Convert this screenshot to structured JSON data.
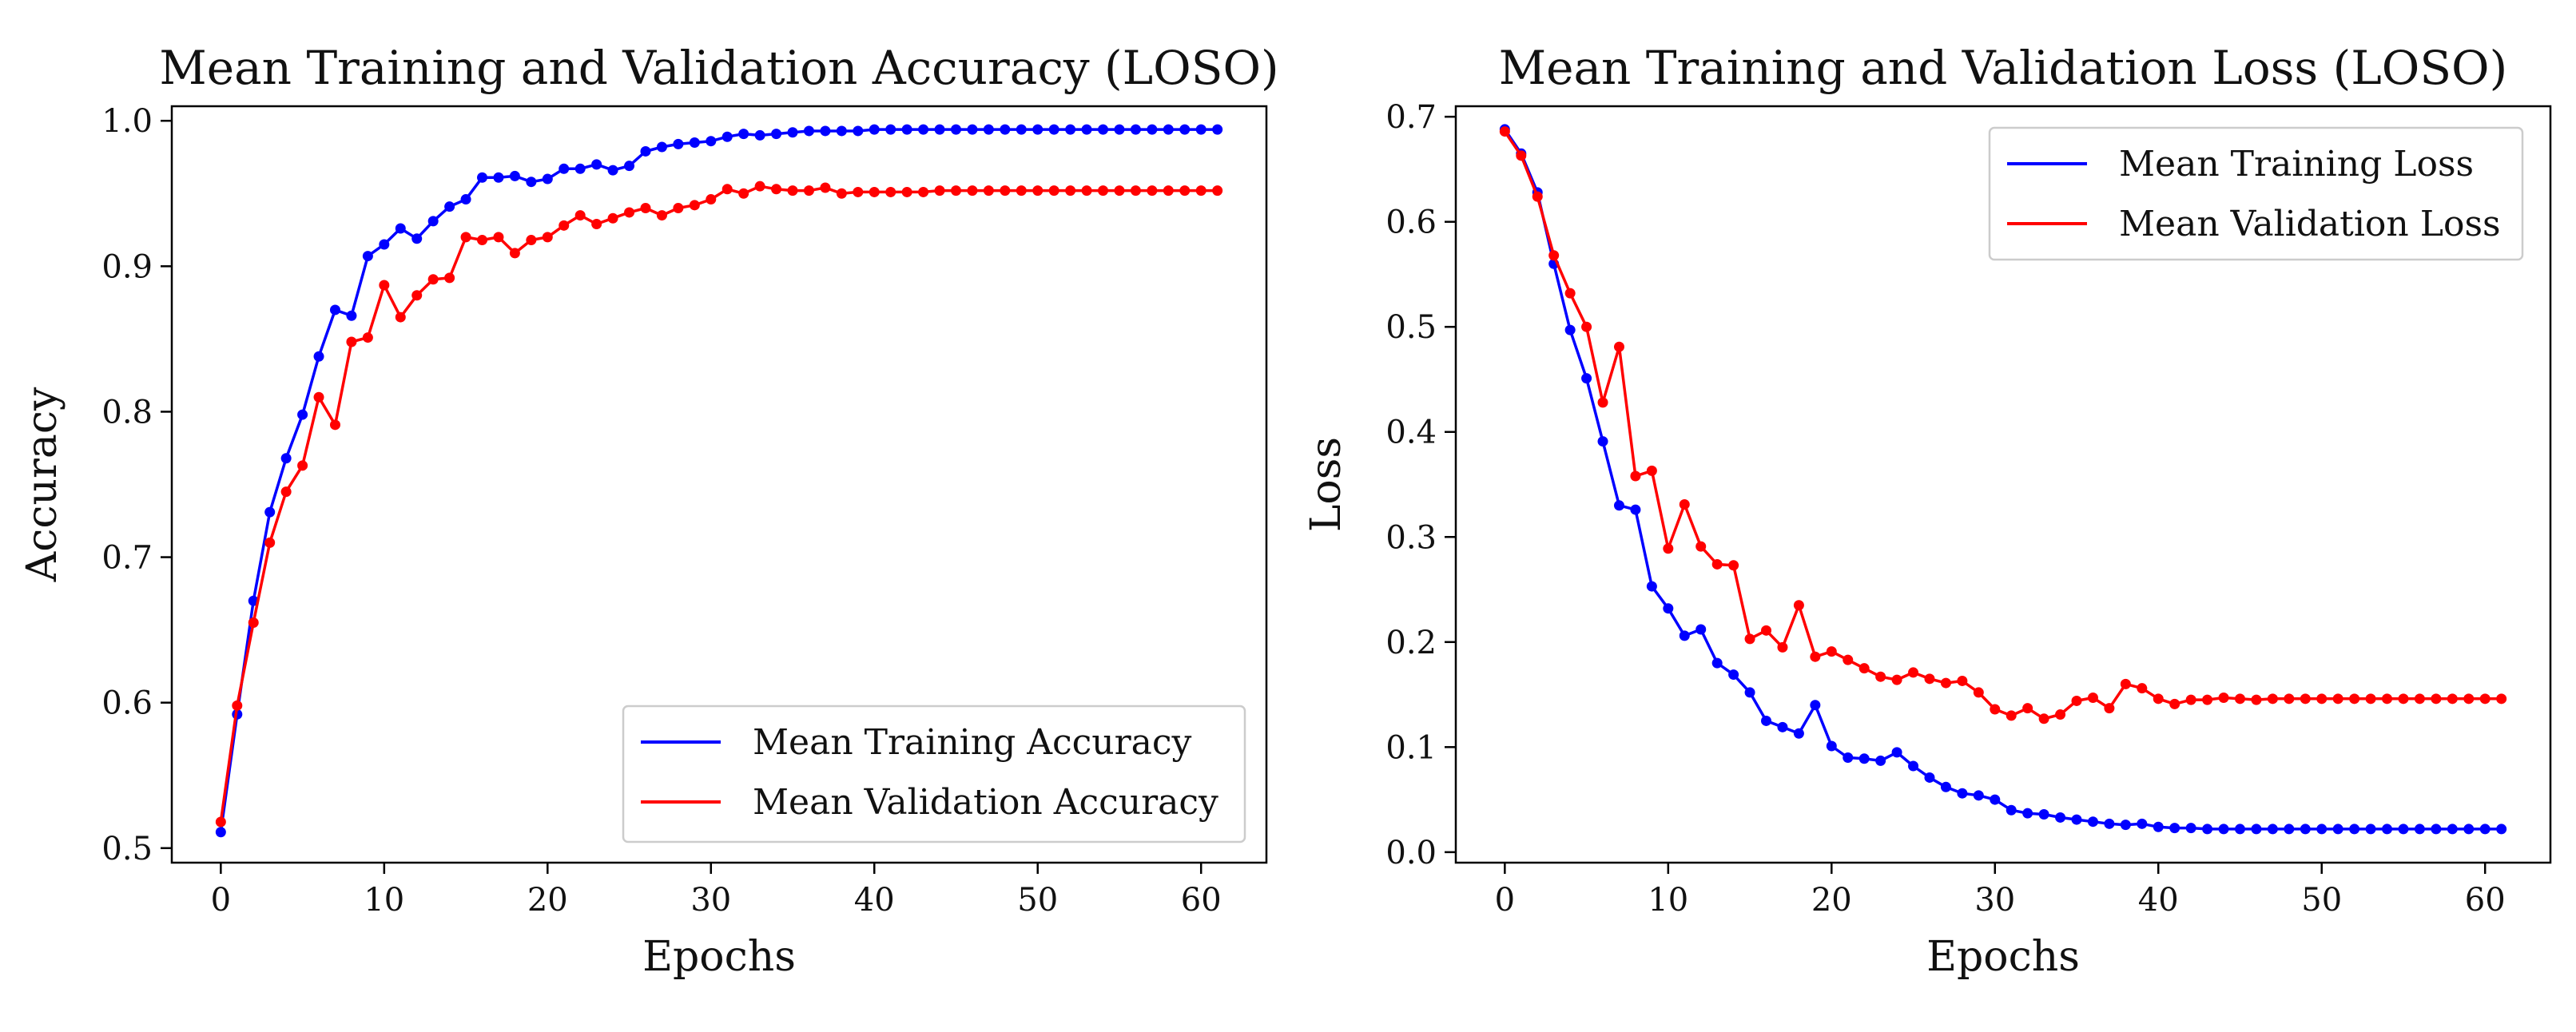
{
  "chart_data": [
    {
      "type": "line",
      "title": "Mean Training and Validation Accuracy (LOSO)",
      "xlabel": "Epochs",
      "ylabel": "Accuracy",
      "xlim": [
        -3,
        64
      ],
      "ylim": [
        0.49,
        1.01
      ],
      "xticks": [
        0,
        10,
        20,
        30,
        40,
        50,
        60
      ],
      "xtick_labels": [
        "0",
        "10",
        "20",
        "30",
        "40",
        "50",
        "60"
      ],
      "yticks": [
        0.5,
        0.6,
        0.7,
        0.8,
        0.9,
        1.0
      ],
      "ytick_labels": [
        "0.5",
        "0.6",
        "0.7",
        "0.8",
        "0.9",
        "1.0"
      ],
      "legend_position": "lower-right",
      "series": [
        {
          "name": "Mean Training Accuracy",
          "color": "#0000ff",
          "values": [
            0.511,
            0.592,
            0.67,
            0.731,
            0.768,
            0.798,
            0.838,
            0.87,
            0.866,
            0.907,
            0.915,
            0.926,
            0.919,
            0.931,
            0.941,
            0.946,
            0.961,
            0.961,
            0.962,
            0.958,
            0.96,
            0.967,
            0.967,
            0.97,
            0.966,
            0.969,
            0.979,
            0.982,
            0.984,
            0.985,
            0.986,
            0.989,
            0.991,
            0.99,
            0.991,
            0.992,
            0.993,
            0.993,
            0.993,
            0.993,
            0.994,
            0.994,
            0.994,
            0.994,
            0.994,
            0.994,
            0.994,
            0.994,
            0.994,
            0.994,
            0.994,
            0.994,
            0.994,
            0.994,
            0.994,
            0.994,
            0.994,
            0.994,
            0.994,
            0.994,
            0.994,
            0.994
          ]
        },
        {
          "name": "Mean Validation Accuracy",
          "color": "#ff0000",
          "values": [
            0.518,
            0.598,
            0.655,
            0.71,
            0.745,
            0.763,
            0.81,
            0.791,
            0.848,
            0.851,
            0.887,
            0.865,
            0.88,
            0.891,
            0.892,
            0.92,
            0.918,
            0.92,
            0.909,
            0.918,
            0.92,
            0.928,
            0.935,
            0.929,
            0.933,
            0.937,
            0.94,
            0.935,
            0.94,
            0.942,
            0.946,
            0.953,
            0.95,
            0.955,
            0.953,
            0.952,
            0.952,
            0.954,
            0.95,
            0.951,
            0.951,
            0.951,
            0.951,
            0.951,
            0.952,
            0.952,
            0.952,
            0.952,
            0.952,
            0.952,
            0.952,
            0.952,
            0.952,
            0.952,
            0.952,
            0.952,
            0.952,
            0.952,
            0.952,
            0.952,
            0.952,
            0.952
          ]
        }
      ]
    },
    {
      "type": "line",
      "title": "Mean Training and Validation Loss (LOSO)",
      "xlabel": "Epochs",
      "ylabel": "Loss",
      "xlim": [
        -3,
        64
      ],
      "ylim": [
        -0.01,
        0.71
      ],
      "xticks": [
        0,
        10,
        20,
        30,
        40,
        50,
        60
      ],
      "xtick_labels": [
        "0",
        "10",
        "20",
        "30",
        "40",
        "50",
        "60"
      ],
      "yticks": [
        0.0,
        0.1,
        0.2,
        0.3,
        0.4,
        0.5,
        0.6,
        0.7
      ],
      "ytick_labels": [
        "0.0",
        "0.1",
        "0.2",
        "0.3",
        "0.4",
        "0.5",
        "0.6",
        "0.7"
      ],
      "legend_position": "upper-right",
      "series": [
        {
          "name": "Mean Training Loss",
          "color": "#0000ff",
          "values": [
            0.688,
            0.665,
            0.628,
            0.56,
            0.497,
            0.451,
            0.391,
            0.33,
            0.326,
            0.253,
            0.232,
            0.206,
            0.212,
            0.18,
            0.169,
            0.152,
            0.125,
            0.119,
            0.113,
            0.14,
            0.101,
            0.09,
            0.089,
            0.087,
            0.095,
            0.082,
            0.071,
            0.062,
            0.056,
            0.054,
            0.05,
            0.04,
            0.037,
            0.036,
            0.033,
            0.031,
            0.029,
            0.027,
            0.026,
            0.027,
            0.024,
            0.023,
            0.023,
            0.022,
            0.022,
            0.022,
            0.022,
            0.022,
            0.022,
            0.022,
            0.022,
            0.022,
            0.022,
            0.022,
            0.022,
            0.022,
            0.022,
            0.022,
            0.022,
            0.022,
            0.022,
            0.022
          ]
        },
        {
          "name": "Mean Validation Loss",
          "color": "#ff0000",
          "values": [
            0.686,
            0.663,
            0.624,
            0.568,
            0.532,
            0.5,
            0.428,
            0.481,
            0.358,
            0.363,
            0.289,
            0.331,
            0.291,
            0.274,
            0.273,
            0.203,
            0.211,
            0.195,
            0.235,
            0.186,
            0.191,
            0.183,
            0.175,
            0.167,
            0.164,
            0.171,
            0.165,
            0.161,
            0.163,
            0.152,
            0.136,
            0.13,
            0.137,
            0.127,
            0.131,
            0.144,
            0.147,
            0.137,
            0.16,
            0.156,
            0.146,
            0.141,
            0.145,
            0.145,
            0.147,
            0.146,
            0.145,
            0.146,
            0.146,
            0.146,
            0.146,
            0.146,
            0.146,
            0.146,
            0.146,
            0.146,
            0.146,
            0.146,
            0.146,
            0.146,
            0.146,
            0.146
          ]
        }
      ]
    }
  ]
}
